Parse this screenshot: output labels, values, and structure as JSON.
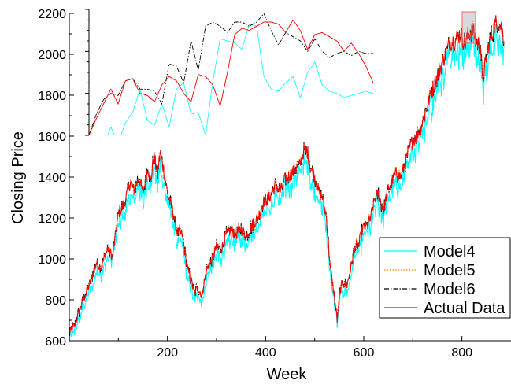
{
  "chart_data": {
    "type": "line",
    "xlabel": "Week",
    "ylabel": "Closing Price",
    "xlim": [
      0,
      900
    ],
    "ylim": [
      600,
      2200
    ],
    "x_ticks": [
      200,
      400,
      600,
      800
    ],
    "y_ticks": [
      600,
      800,
      1000,
      1200,
      1400,
      1600,
      1800,
      2000,
      2200
    ],
    "legend_position": "bottom-right",
    "series": [
      {
        "name": "Model4",
        "color": "#00FFFF",
        "style": "solid"
      },
      {
        "name": "Model5",
        "color": "#FF8000",
        "style": "dotted"
      },
      {
        "name": "Model6",
        "color": "#000000",
        "style": "dash-dot"
      },
      {
        "name": "Actual Data",
        "color": "#FF0000",
        "style": "solid"
      }
    ],
    "actual_anchors": [
      [
        0,
        640
      ],
      [
        12,
        680
      ],
      [
        22,
        760
      ],
      [
        32,
        820
      ],
      [
        45,
        900
      ],
      [
        55,
        980
      ],
      [
        65,
        960
      ],
      [
        78,
        1050
      ],
      [
        88,
        1010
      ],
      [
        100,
        1220
      ],
      [
        112,
        1270
      ],
      [
        125,
        1380
      ],
      [
        132,
        1330
      ],
      [
        142,
        1400
      ],
      [
        150,
        1320
      ],
      [
        160,
        1450
      ],
      [
        166,
        1380
      ],
      [
        172,
        1500
      ],
      [
        180,
        1420
      ],
      [
        185,
        1520
      ],
      [
        192,
        1440
      ],
      [
        200,
        1320
      ],
      [
        210,
        1240
      ],
      [
        220,
        1130
      ],
      [
        230,
        1120
      ],
      [
        240,
        960
      ],
      [
        248,
        900
      ],
      [
        255,
        830
      ],
      [
        262,
        860
      ],
      [
        270,
        820
      ],
      [
        280,
        950
      ],
      [
        290,
        990
      ],
      [
        300,
        1060
      ],
      [
        310,
        1050
      ],
      [
        320,
        1120
      ],
      [
        330,
        1140
      ],
      [
        340,
        1120
      ],
      [
        350,
        1150
      ],
      [
        360,
        1110
      ],
      [
        372,
        1160
      ],
      [
        384,
        1200
      ],
      [
        396,
        1280
      ],
      [
        408,
        1300
      ],
      [
        420,
        1360
      ],
      [
        430,
        1330
      ],
      [
        440,
        1390
      ],
      [
        450,
        1410
      ],
      [
        460,
        1440
      ],
      [
        470,
        1460
      ],
      [
        478,
        1530
      ],
      [
        486,
        1520
      ],
      [
        492,
        1440
      ],
      [
        500,
        1400
      ],
      [
        508,
        1330
      ],
      [
        516,
        1300
      ],
      [
        524,
        1200
      ],
      [
        532,
        950
      ],
      [
        540,
        820
      ],
      [
        546,
        700
      ],
      [
        552,
        850
      ],
      [
        558,
        880
      ],
      [
        566,
        870
      ],
      [
        574,
        960
      ],
      [
        582,
        1060
      ],
      [
        590,
        1070
      ],
      [
        598,
        1150
      ],
      [
        606,
        1160
      ],
      [
        614,
        1200
      ],
      [
        622,
        1290
      ],
      [
        630,
        1320
      ],
      [
        640,
        1230
      ],
      [
        648,
        1330
      ],
      [
        656,
        1370
      ],
      [
        666,
        1420
      ],
      [
        676,
        1400
      ],
      [
        686,
        1480
      ],
      [
        696,
        1560
      ],
      [
        706,
        1600
      ],
      [
        716,
        1640
      ],
      [
        726,
        1720
      ],
      [
        736,
        1800
      ],
      [
        746,
        1870
      ],
      [
        756,
        1930
      ],
      [
        766,
        2000
      ],
      [
        776,
        2060
      ],
      [
        786,
        2070
      ],
      [
        796,
        2100
      ],
      [
        806,
        2050
      ],
      [
        814,
        2100
      ],
      [
        822,
        2120
      ],
      [
        830,
        2060
      ],
      [
        838,
        2040
      ],
      [
        842,
        1860
      ],
      [
        848,
        1960
      ],
      [
        856,
        2060
      ],
      [
        862,
        2100
      ],
      [
        868,
        2150
      ],
      [
        874,
        2160
      ],
      [
        880,
        2130
      ],
      [
        886,
        2080
      ]
    ],
    "inset": {
      "xlim": [
        0,
        65
      ],
      "ylim": [
        1600,
        2200
      ],
      "y_ticks": [
        1600,
        1800,
        2000,
        2200
      ],
      "actual": [
        [
          0,
          1600
        ],
        [
          4,
          1680
        ],
        [
          8,
          1750
        ],
        [
          12,
          1820
        ],
        [
          16,
          1750
        ],
        [
          20,
          1860
        ],
        [
          24,
          1870
        ],
        [
          28,
          1800
        ],
        [
          32,
          1790
        ],
        [
          36,
          1760
        ],
        [
          40,
          1840
        ],
        [
          44,
          1880
        ],
        [
          48,
          1860
        ],
        [
          52,
          1800
        ],
        [
          56,
          1760
        ],
        [
          60,
          1890
        ],
        [
          64,
          1880
        ],
        [
          68,
          1840
        ],
        [
          72,
          1740
        ],
        [
          76,
          1900
        ],
        [
          80,
          2080
        ],
        [
          84,
          2110
        ],
        [
          88,
          2100
        ],
        [
          92,
          2120
        ],
        [
          96,
          2140
        ],
        [
          100,
          2140
        ],
        [
          104,
          2130
        ],
        [
          108,
          2090
        ],
        [
          112,
          2150
        ],
        [
          116,
          2100
        ],
        [
          120,
          2010
        ],
        [
          124,
          2080
        ],
        [
          128,
          2090
        ],
        [
          132,
          2070
        ],
        [
          136,
          2050
        ],
        [
          140,
          2000
        ],
        [
          144,
          2040
        ],
        [
          148,
          1990
        ],
        [
          152,
          1930
        ],
        [
          156,
          1850
        ]
      ],
      "model6": [
        [
          0,
          1600
        ],
        [
          4,
          1700
        ],
        [
          8,
          1770
        ],
        [
          12,
          1800
        ],
        [
          16,
          1790
        ],
        [
          20,
          1860
        ],
        [
          24,
          1870
        ],
        [
          28,
          1820
        ],
        [
          32,
          1820
        ],
        [
          36,
          1810
        ],
        [
          40,
          1750
        ],
        [
          44,
          1940
        ],
        [
          48,
          1930
        ],
        [
          52,
          1850
        ],
        [
          56,
          2050
        ],
        [
          60,
          1910
        ],
        [
          64,
          2120
        ],
        [
          68,
          2140
        ],
        [
          72,
          2120
        ],
        [
          76,
          2090
        ],
        [
          80,
          2140
        ],
        [
          84,
          2140
        ],
        [
          88,
          2120
        ],
        [
          92,
          2140
        ],
        [
          96,
          2180
        ],
        [
          100,
          2100
        ],
        [
          104,
          2030
        ],
        [
          108,
          2090
        ],
        [
          112,
          2070
        ],
        [
          116,
          2050
        ],
        [
          120,
          2000
        ],
        [
          124,
          2060
        ],
        [
          128,
          2000
        ],
        [
          132,
          1970
        ],
        [
          136,
          1990
        ],
        [
          140,
          2000
        ],
        [
          144,
          1980
        ],
        [
          148,
          2000
        ],
        [
          152,
          1990
        ],
        [
          156,
          1990
        ]
      ],
      "model4": [
        [
          0,
          1560
        ],
        [
          4,
          1600
        ],
        [
          8,
          1550
        ],
        [
          12,
          1640
        ],
        [
          16,
          1560
        ],
        [
          20,
          1660
        ],
        [
          24,
          1710
        ],
        [
          28,
          1820
        ],
        [
          32,
          1670
        ],
        [
          36,
          1650
        ],
        [
          40,
          1750
        ],
        [
          44,
          1640
        ],
        [
          48,
          1820
        ],
        [
          52,
          1850
        ],
        [
          56,
          1700
        ],
        [
          60,
          1710
        ],
        [
          64,
          1600
        ],
        [
          68,
          1860
        ],
        [
          72,
          2060
        ],
        [
          76,
          2050
        ],
        [
          80,
          2040
        ],
        [
          84,
          2010
        ],
        [
          88,
          2130
        ],
        [
          92,
          2120
        ],
        [
          96,
          1880
        ],
        [
          100,
          1820
        ],
        [
          104,
          1810
        ],
        [
          108,
          1850
        ],
        [
          112,
          1880
        ],
        [
          116,
          1780
        ],
        [
          120,
          1900
        ],
        [
          124,
          1950
        ],
        [
          128,
          1840
        ],
        [
          132,
          1810
        ],
        [
          136,
          1800
        ],
        [
          140,
          1780
        ],
        [
          144,
          1790
        ],
        [
          148,
          1800
        ],
        [
          152,
          1810
        ],
        [
          156,
          1800
        ]
      ]
    }
  }
}
